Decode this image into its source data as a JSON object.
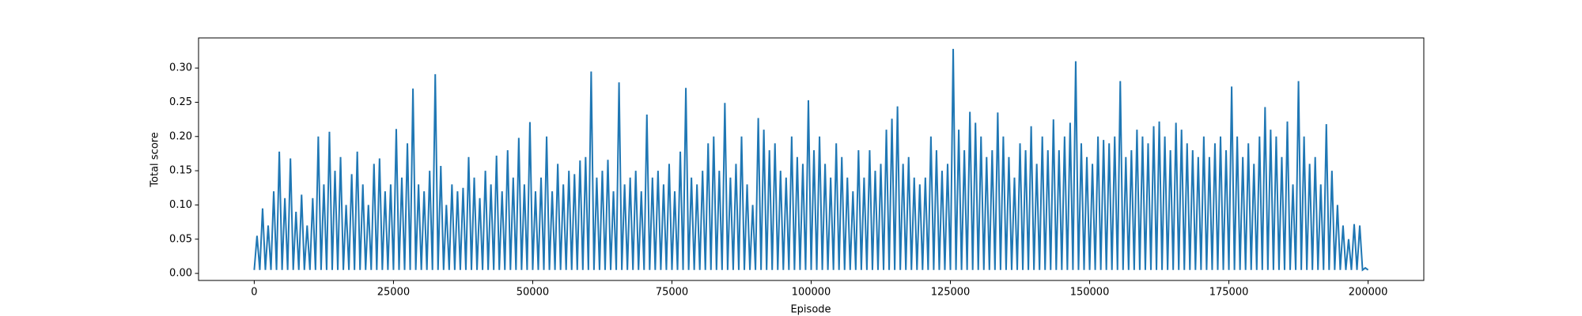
{
  "chart_data": {
    "type": "line",
    "xlabel": "Episode",
    "ylabel": "Total score",
    "color": "#1f77b4",
    "xlim": [
      -10000,
      210000
    ],
    "ylim": [
      -0.0103,
      0.344
    ],
    "xticks": [
      0,
      25000,
      50000,
      75000,
      100000,
      125000,
      150000,
      175000,
      200000
    ],
    "yticks": [
      {
        "value": 0,
        "label": "0.00"
      },
      {
        "value": 0.05,
        "label": "0.05"
      },
      {
        "value": 0.1,
        "label": "0.10"
      },
      {
        "value": 0.15,
        "label": "0.15"
      },
      {
        "value": 0.2,
        "label": "0.20"
      },
      {
        "value": 0.25,
        "label": "0.25"
      },
      {
        "value": 0.3,
        "label": "0.30"
      }
    ],
    "x": [
      0,
      500,
      1000,
      1500,
      2000,
      2500,
      3000,
      3500,
      4000,
      4500,
      5000,
      5500,
      6000,
      6500,
      7000,
      7500,
      8000,
      8500,
      9000,
      9500,
      10000,
      10500,
      11000,
      11500,
      12000,
      12500,
      13000,
      13500,
      14000,
      14500,
      15000,
      15500,
      16000,
      16500,
      17000,
      17500,
      18000,
      18500,
      19000,
      19500,
      20000,
      20500,
      21000,
      21500,
      22000,
      22500,
      23000,
      23500,
      24000,
      24500,
      25000,
      25500,
      26000,
      26500,
      27000,
      27500,
      28000,
      28500,
      29000,
      29500,
      30000,
      30500,
      31000,
      31500,
      32000,
      32500,
      33000,
      33500,
      34000,
      34500,
      35000,
      35500,
      36000,
      36500,
      37000,
      37500,
      38000,
      38500,
      39000,
      39500,
      40000,
      40500,
      41000,
      41500,
      42000,
      42500,
      43000,
      43500,
      44000,
      44500,
      45000,
      45500,
      46000,
      46500,
      47000,
      47500,
      48000,
      48500,
      49000,
      49500,
      50000,
      50500,
      51000,
      51500,
      52000,
      52500,
      53000,
      53500,
      54000,
      54500,
      55000,
      55500,
      56000,
      56500,
      57000,
      57500,
      58000,
      58500,
      59000,
      59500,
      60000,
      60500,
      61000,
      61500,
      62000,
      62500,
      63000,
      63500,
      64000,
      64500,
      65000,
      65500,
      66000,
      66500,
      67000,
      67500,
      68000,
      68500,
      69000,
      69500,
      70000,
      70500,
      71000,
      71500,
      72000,
      72500,
      73000,
      73500,
      74000,
      74500,
      75000,
      75500,
      76000,
      76500,
      77000,
      77500,
      78000,
      78500,
      79000,
      79500,
      80000,
      80500,
      81000,
      81500,
      82000,
      82500,
      83000,
      83500,
      84000,
      84500,
      85000,
      85500,
      86000,
      86500,
      87000,
      87500,
      88000,
      88500,
      89000,
      89500,
      90000,
      90500,
      91000,
      91500,
      92000,
      92500,
      93000,
      93500,
      94000,
      94500,
      95000,
      95500,
      96000,
      96500,
      97000,
      97500,
      98000,
      98500,
      99000,
      99500,
      100000,
      100500,
      101000,
      101500,
      102000,
      102500,
      103000,
      103500,
      104000,
      104500,
      105000,
      105500,
      106000,
      106500,
      107000,
      107500,
      108000,
      108500,
      109000,
      109500,
      110000,
      110500,
      111000,
      111500,
      112000,
      112500,
      113000,
      113500,
      114000,
      114500,
      115000,
      115500,
      116000,
      116500,
      117000,
      117500,
      118000,
      118500,
      119000,
      119500,
      120000,
      120500,
      121000,
      121500,
      122000,
      122500,
      123000,
      123500,
      124000,
      124500,
      125000,
      125500,
      126000,
      126500,
      127000,
      127500,
      128000,
      128500,
      129000,
      129500,
      130000,
      130500,
      131000,
      131500,
      132000,
      132500,
      133000,
      133500,
      134000,
      134500,
      135000,
      135500,
      136000,
      136500,
      137000,
      137500,
      138000,
      138500,
      139000,
      139500,
      140000,
      140500,
      141000,
      141500,
      142000,
      142500,
      143000,
      143500,
      144000,
      144500,
      145000,
      145500,
      146000,
      146500,
      147000,
      147500,
      148000,
      148500,
      149000,
      149500,
      150000,
      150500,
      151000,
      151500,
      152000,
      152500,
      153000,
      153500,
      154000,
      154500,
      155000,
      155500,
      156000,
      156500,
      157000,
      157500,
      158000,
      158500,
      159000,
      159500,
      160000,
      160500,
      161000,
      161500,
      162000,
      162500,
      163000,
      163500,
      164000,
      164500,
      165000,
      165500,
      166000,
      166500,
      167000,
      167500,
      168000,
      168500,
      169000,
      169500,
      170000,
      170500,
      171000,
      171500,
      172000,
      172500,
      173000,
      173500,
      174000,
      174500,
      175000,
      175500,
      176000,
      176500,
      177000,
      177500,
      178000,
      178500,
      179000,
      179500,
      180000,
      180500,
      181000,
      181500,
      182000,
      182500,
      183000,
      183500,
      184000,
      184500,
      185000,
      185500,
      186000,
      186500,
      187000,
      187500,
      188000,
      188500,
      189000,
      189500,
      190000,
      190500,
      191000,
      191500,
      192000,
      192500,
      193000,
      193500,
      194000,
      194500,
      195000,
      195500,
      196000,
      196500,
      197000,
      197500,
      198000,
      198500,
      199000,
      199500,
      200000
    ],
    "values": [
      0.005,
      0.055,
      0.005,
      0.095,
      0.005,
      0.07,
      0.005,
      0.12,
      0.005,
      0.178,
      0.005,
      0.11,
      0.005,
      0.168,
      0.005,
      0.09,
      0.005,
      0.115,
      0.005,
      0.07,
      0.005,
      0.11,
      0.005,
      0.2,
      0.005,
      0.13,
      0.005,
      0.207,
      0.005,
      0.15,
      0.005,
      0.17,
      0.005,
      0.1,
      0.005,
      0.145,
      0.005,
      0.178,
      0.005,
      0.13,
      0.005,
      0.1,
      0.005,
      0.16,
      0.005,
      0.168,
      0.005,
      0.12,
      0.005,
      0.13,
      0.005,
      0.211,
      0.005,
      0.14,
      0.005,
      0.19,
      0.005,
      0.27,
      0.005,
      0.13,
      0.005,
      0.12,
      0.005,
      0.15,
      0.005,
      0.291,
      0.005,
      0.157,
      0.005,
      0.1,
      0.005,
      0.13,
      0.005,
      0.12,
      0.005,
      0.125,
      0.005,
      0.17,
      0.005,
      0.14,
      0.005,
      0.11,
      0.005,
      0.15,
      0.005,
      0.13,
      0.005,
      0.172,
      0.005,
      0.12,
      0.005,
      0.18,
      0.005,
      0.14,
      0.005,
      0.198,
      0.005,
      0.13,
      0.005,
      0.221,
      0.005,
      0.12,
      0.005,
      0.14,
      0.005,
      0.2,
      0.005,
      0.12,
      0.005,
      0.16,
      0.005,
      0.13,
      0.005,
      0.15,
      0.005,
      0.145,
      0.005,
      0.165,
      0.005,
      0.17,
      0.005,
      0.295,
      0.005,
      0.14,
      0.005,
      0.15,
      0.005,
      0.166,
      0.005,
      0.12,
      0.005,
      0.279,
      0.005,
      0.13,
      0.005,
      0.14,
      0.005,
      0.15,
      0.005,
      0.12,
      0.005,
      0.232,
      0.005,
      0.14,
      0.005,
      0.15,
      0.005,
      0.13,
      0.005,
      0.16,
      0.005,
      0.12,
      0.005,
      0.178,
      0.005,
      0.271,
      0.005,
      0.14,
      0.005,
      0.13,
      0.005,
      0.15,
      0.005,
      0.19,
      0.005,
      0.2,
      0.005,
      0.15,
      0.005,
      0.249,
      0.005,
      0.14,
      0.005,
      0.16,
      0.005,
      0.2,
      0.005,
      0.13,
      0.005,
      0.1,
      0.005,
      0.227,
      0.005,
      0.21,
      0.005,
      0.18,
      0.005,
      0.19,
      0.005,
      0.15,
      0.005,
      0.14,
      0.005,
      0.2,
      0.005,
      0.17,
      0.005,
      0.16,
      0.005,
      0.253,
      0.005,
      0.18,
      0.005,
      0.2,
      0.005,
      0.16,
      0.005,
      0.14,
      0.005,
      0.19,
      0.005,
      0.17,
      0.005,
      0.14,
      0.005,
      0.12,
      0.005,
      0.18,
      0.005,
      0.14,
      0.005,
      0.18,
      0.005,
      0.15,
      0.005,
      0.16,
      0.005,
      0.21,
      0.005,
      0.226,
      0.005,
      0.244,
      0.005,
      0.16,
      0.005,
      0.17,
      0.005,
      0.14,
      0.005,
      0.13,
      0.005,
      0.14,
      0.005,
      0.2,
      0.005,
      0.18,
      0.005,
      0.15,
      0.005,
      0.16,
      0.005,
      0.328,
      0.005,
      0.21,
      0.005,
      0.18,
      0.005,
      0.236,
      0.005,
      0.22,
      0.005,
      0.2,
      0.005,
      0.17,
      0.005,
      0.18,
      0.005,
      0.235,
      0.005,
      0.2,
      0.005,
      0.17,
      0.005,
      0.14,
      0.005,
      0.19,
      0.005,
      0.18,
      0.005,
      0.215,
      0.005,
      0.16,
      0.005,
      0.2,
      0.005,
      0.18,
      0.005,
      0.225,
      0.005,
      0.18,
      0.005,
      0.2,
      0.005,
      0.22,
      0.005,
      0.31,
      0.005,
      0.19,
      0.005,
      0.17,
      0.005,
      0.16,
      0.005,
      0.2,
      0.005,
      0.195,
      0.005,
      0.19,
      0.005,
      0.2,
      0.005,
      0.281,
      0.005,
      0.17,
      0.005,
      0.18,
      0.005,
      0.21,
      0.005,
      0.2,
      0.005,
      0.19,
      0.005,
      0.215,
      0.005,
      0.222,
      0.005,
      0.2,
      0.005,
      0.18,
      0.005,
      0.22,
      0.005,
      0.21,
      0.005,
      0.19,
      0.005,
      0.18,
      0.005,
      0.17,
      0.005,
      0.2,
      0.005,
      0.17,
      0.005,
      0.19,
      0.005,
      0.2,
      0.005,
      0.18,
      0.005,
      0.273,
      0.005,
      0.2,
      0.005,
      0.17,
      0.005,
      0.19,
      0.005,
      0.16,
      0.005,
      0.2,
      0.005,
      0.243,
      0.005,
      0.21,
      0.005,
      0.2,
      0.005,
      0.17,
      0.005,
      0.222,
      0.005,
      0.13,
      0.005,
      0.281,
      0.005,
      0.2,
      0.005,
      0.16,
      0.005,
      0.17,
      0.005,
      0.13,
      0.005,
      0.218,
      0.005,
      0.15,
      0.005,
      0.1,
      0.005,
      0.07,
      0.005,
      0.05,
      0.005,
      0.072,
      0.005,
      0.07,
      0.005,
      0.008,
      0.005
    ]
  }
}
